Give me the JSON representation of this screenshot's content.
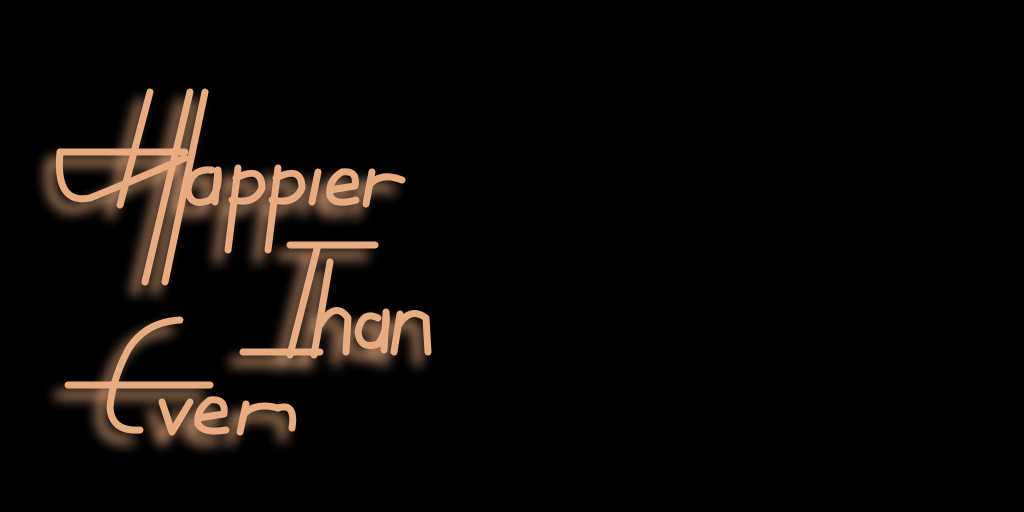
{
  "title": {
    "line1": "Happier",
    "line2": "Than",
    "line3": "Ever"
  },
  "colors": {
    "background": "#000000",
    "text_stroke": "#e9ab80",
    "glow": "#f6dfd0"
  }
}
